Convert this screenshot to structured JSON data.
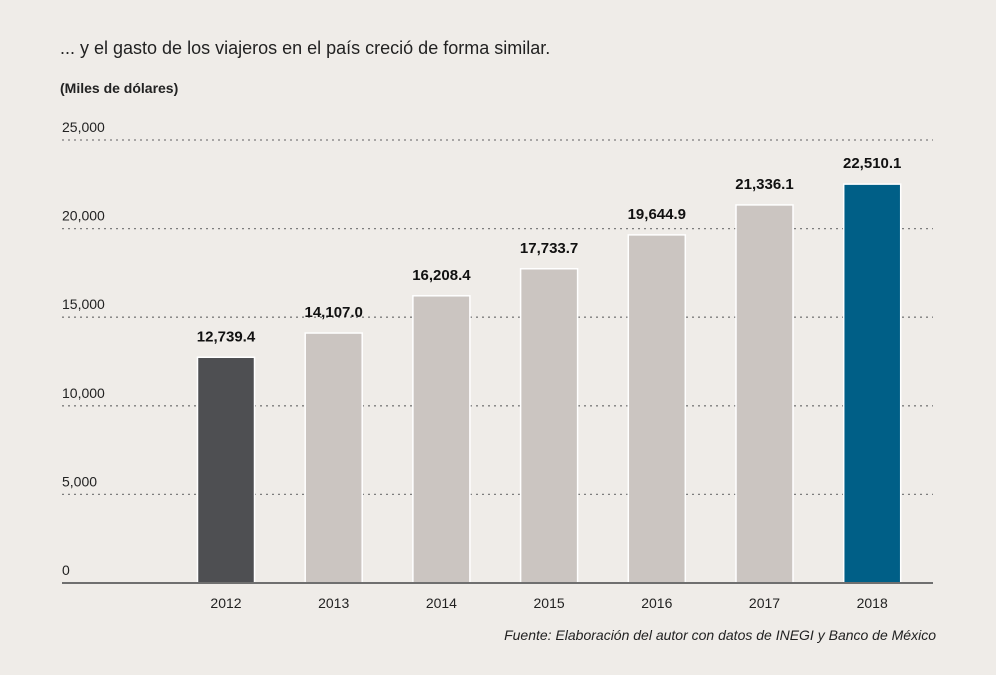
{
  "header": {
    "title": "... y el gasto de los viajeros en el país creció de forma similar.",
    "unit": "(Miles de dólares)"
  },
  "footer": {
    "source": "Fuente: Elaboración del autor con datos de INEGI y Banco de México"
  },
  "colors": {
    "default_bar": "#cbc5c1",
    "first_bar": "#4e4f52",
    "highlight_bar": "#005f87",
    "grid": "#7d7d7d",
    "axis": "#6f6f6f"
  },
  "chart_data": {
    "type": "bar",
    "title": "",
    "xlabel": "",
    "ylabel": "(Miles de dólares)",
    "categories": [
      "2012",
      "2013",
      "2014",
      "2015",
      "2016",
      "2017",
      "2018"
    ],
    "values": [
      12739.4,
      14107.0,
      16208.4,
      17733.7,
      19644.9,
      21336.1,
      22510.1
    ],
    "value_labels": [
      "12,739.4",
      "14,107.0",
      "16,208.4",
      "17,733.7",
      "19,644.9",
      "21,336.1",
      "22,510.1"
    ],
    "yticks": [
      0,
      5000,
      10000,
      15000,
      20000,
      25000
    ],
    "ytick_labels": [
      "0",
      "5,000",
      "10,000",
      "15,000",
      "20,000",
      "25,000"
    ],
    "ylim": [
      0,
      25000
    ],
    "grid": true,
    "grid_style": "dotted",
    "legend": false
  }
}
